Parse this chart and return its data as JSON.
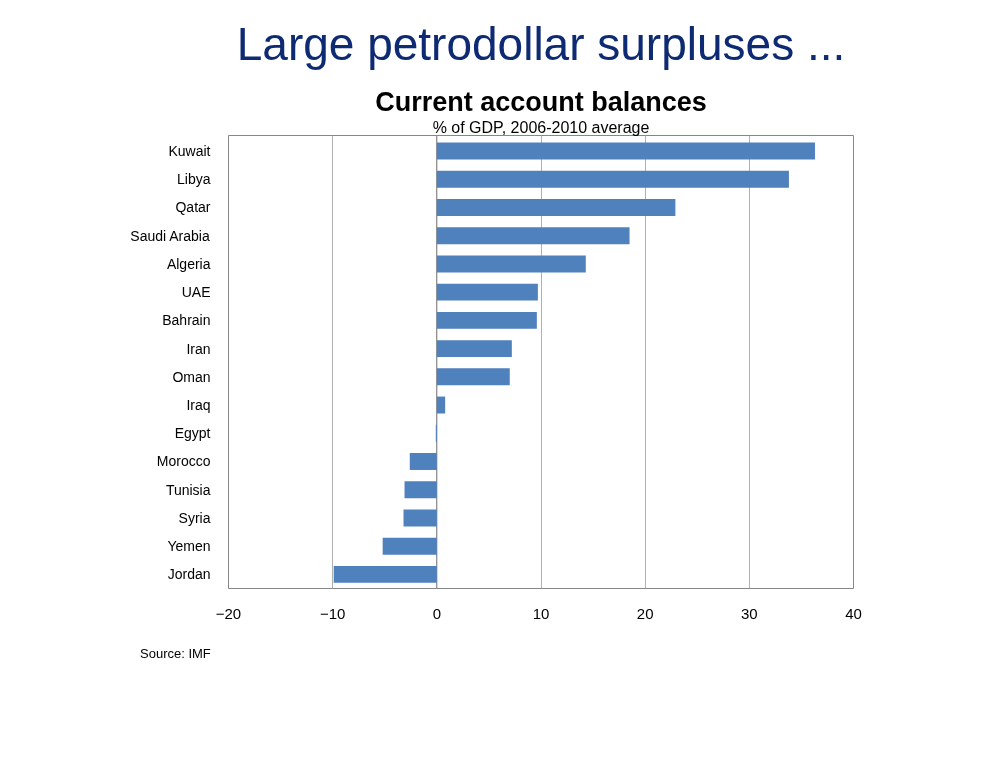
{
  "chart_data": {
    "type": "bar",
    "orientation": "horizontal",
    "title": "Current account balances",
    "subtitle": "% of GDP, 2006-2010 average",
    "annotations": [
      "Large petrodollar surpluses ...",
      "Source: IMF"
    ],
    "categories": [
      "Kuwait",
      "Libya",
      "Qatar",
      "Saudi Arabia",
      "Algeria",
      "UAE",
      "Bahrain",
      "Iran",
      "Oman",
      "Iraq",
      "Egypt",
      "Morocco",
      "Tunisia",
      "Syria",
      "Yemen",
      "Jordan"
    ],
    "values": [
      36.3,
      33.8,
      22.9,
      18.5,
      14.3,
      9.7,
      9.6,
      7.2,
      7.0,
      0.8,
      -0.1,
      -2.6,
      -3.1,
      -3.2,
      -5.2,
      -9.9
    ],
    "color": "#4f81bd",
    "xlim": [
      -20,
      40
    ],
    "xticks": [
      -20,
      -10,
      0,
      10,
      20,
      30,
      40
    ],
    "grid": "x"
  }
}
